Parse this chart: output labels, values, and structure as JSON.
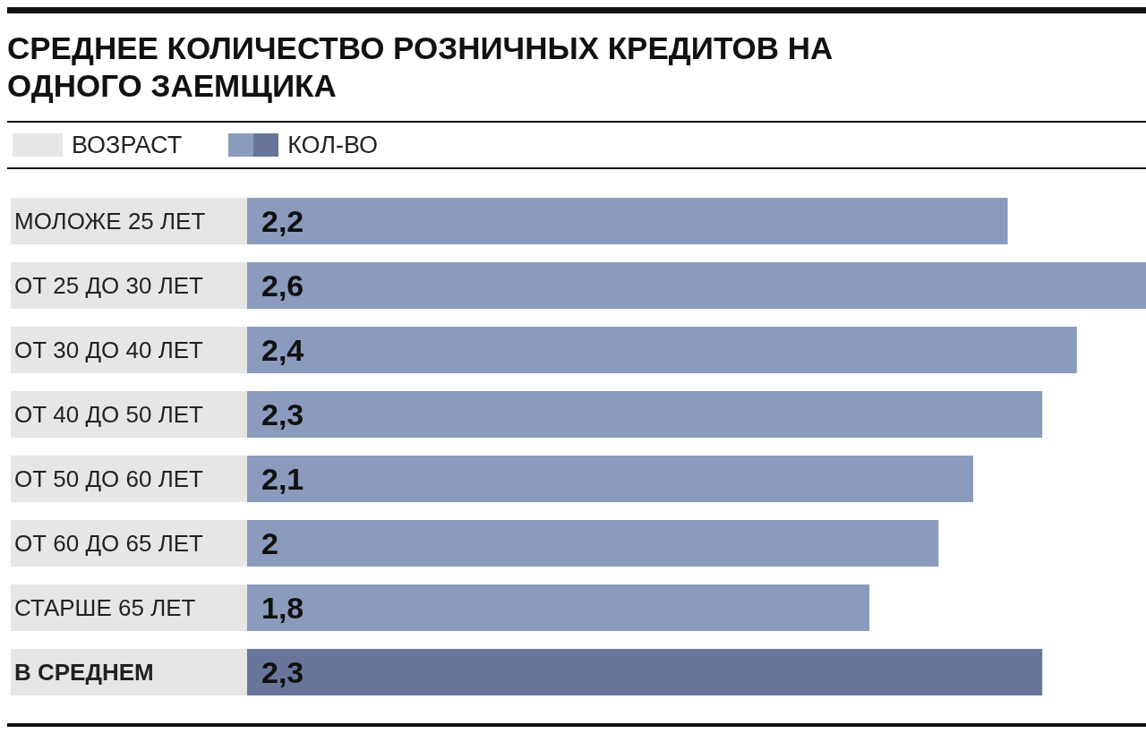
{
  "chart_data": {
    "type": "bar",
    "orientation": "horizontal",
    "title": "СРЕДНЕЕ КОЛИЧЕСТВО РОЗНИЧНЫХ КРЕДИТОВ НА ОДНОГО ЗАЕМЩИКА",
    "ylabel": "ВОЗРАСТ",
    "categories": [
      "МОЛОЖЕ 25 ЛЕТ",
      "ОТ 25 ДО 30 ЛЕТ",
      "ОТ 30 ДО 40 ЛЕТ",
      "ОТ 40 ДО 50 ЛЕТ",
      "ОТ 50 ДО 60 ЛЕТ",
      "ОТ 60 ДО 65 ЛЕТ",
      "СТАРШЕ 65 ЛЕТ",
      "В СРЕДНЕМ"
    ],
    "series": [
      {
        "name": "КОЛ-ВО",
        "values": [
          2.2,
          2.6,
          2.4,
          2.3,
          2.1,
          2,
          1.8,
          2.3
        ],
        "value_labels": [
          "2,2",
          "2,6",
          "2,4",
          "2,3",
          "2,1",
          "2",
          "1,8",
          "2,3"
        ],
        "colors": [
          "#8a9bbd",
          "#8a9bbd",
          "#8a9bbd",
          "#8a9bbd",
          "#8a9bbd",
          "#8a9bbd",
          "#8a9bbd",
          "#67769a"
        ]
      }
    ],
    "legend": "top left"
  }
}
